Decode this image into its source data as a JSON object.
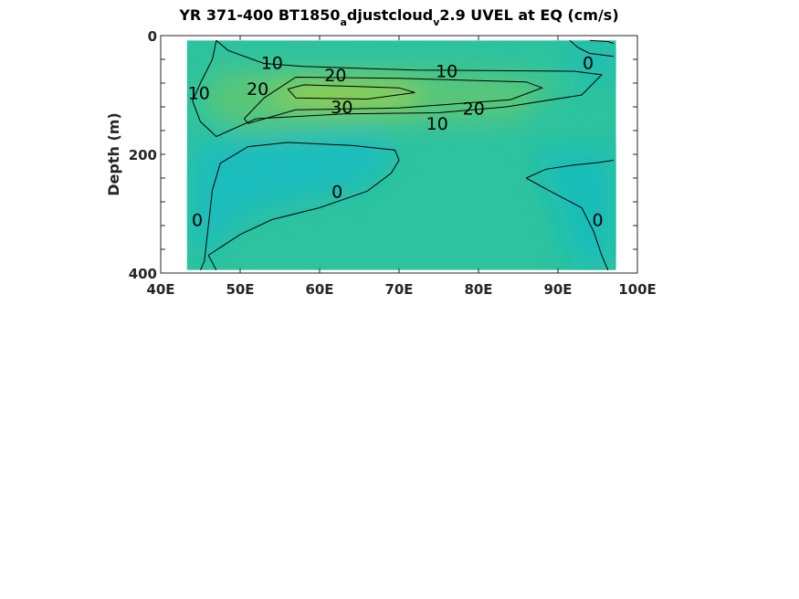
{
  "chart_data": {
    "type": "heatmap",
    "title_parts": [
      "YR 371-400 BT1850",
      "a",
      "djustcloud",
      "v",
      "2.9 UVEL at EQ (cm/s)"
    ],
    "xlabel": "",
    "ylabel": "Depth (m)",
    "xlim": [
      40,
      100
    ],
    "ylim": [
      0,
      400
    ],
    "y_reversed": true,
    "x_ticks": [
      40,
      50,
      60,
      70,
      80,
      90,
      100
    ],
    "x_tick_labels": [
      "40E",
      "50E",
      "60E",
      "70E",
      "80E",
      "90E",
      "100E"
    ],
    "y_ticks": [
      0,
      200,
      400
    ],
    "y_tick_labels": [
      "0",
      "200",
      "400"
    ],
    "data_extent": {
      "x": [
        43.3,
        97.3
      ],
      "y": [
        8,
        395
      ]
    },
    "colors": {
      "low": "#14bcc2",
      "mid": "#2ec39f",
      "high": "#8acd4c",
      "max": "#9fd03e"
    },
    "contour_levels": [
      0,
      10,
      20,
      30
    ],
    "contour_labels": [
      {
        "text": "10",
        "x": 54.0,
        "y": 45
      },
      {
        "text": "20",
        "x": 62.0,
        "y": 66
      },
      {
        "text": "10",
        "x": 76.0,
        "y": 59
      },
      {
        "text": "0",
        "x": 93.8,
        "y": 45
      },
      {
        "text": "10",
        "x": 44.8,
        "y": 96
      },
      {
        "text": "20",
        "x": 52.2,
        "y": 89
      },
      {
        "text": "30",
        "x": 62.8,
        "y": 120
      },
      {
        "text": "20",
        "x": 79.4,
        "y": 122
      },
      {
        "text": "10",
        "x": 74.8,
        "y": 148
      },
      {
        "text": "0",
        "x": 62.2,
        "y": 262
      },
      {
        "text": "0",
        "x": 44.6,
        "y": 310
      },
      {
        "text": "0",
        "x": 95.0,
        "y": 310
      }
    ]
  }
}
